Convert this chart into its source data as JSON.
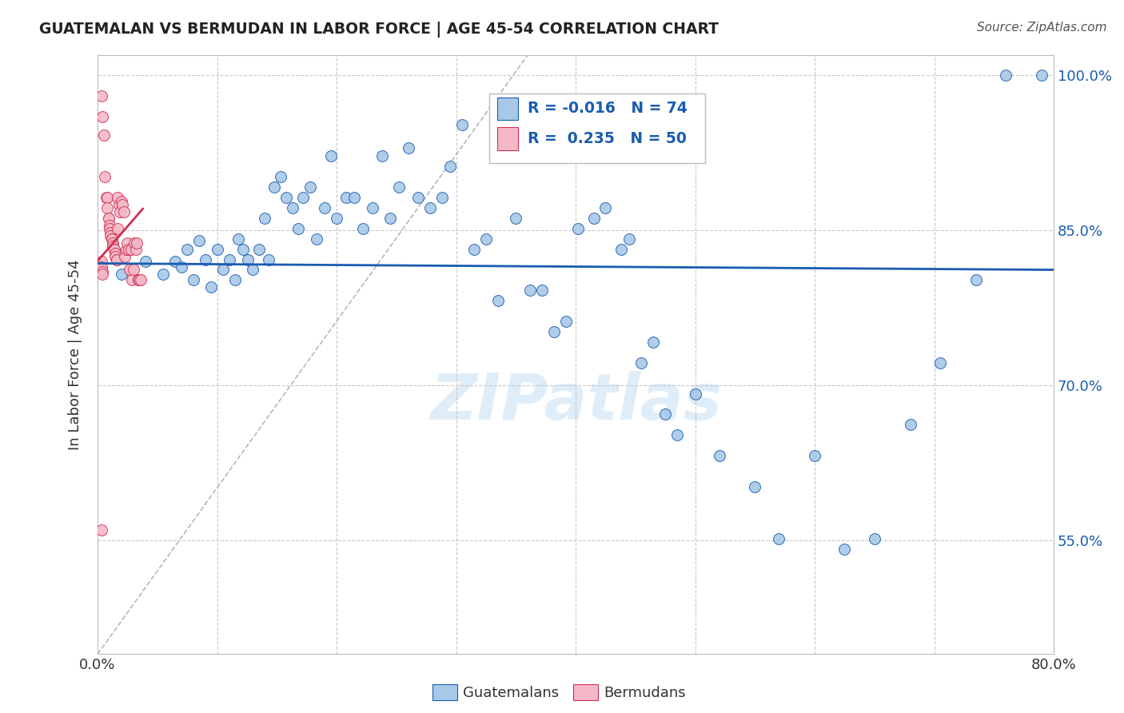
{
  "title": "GUATEMALAN VS BERMUDAN IN LABOR FORCE | AGE 45-54 CORRELATION CHART",
  "source": "Source: ZipAtlas.com",
  "ylabel": "In Labor Force | Age 45-54",
  "xlim": [
    0.0,
    0.8
  ],
  "ylim": [
    0.44,
    1.02
  ],
  "yticks": [
    0.55,
    0.7,
    0.85,
    1.0
  ],
  "ytick_labels": [
    "55.0%",
    "70.0%",
    "85.0%",
    "100.0%"
  ],
  "xticks": [
    0.0,
    0.1,
    0.2,
    0.3,
    0.4,
    0.5,
    0.6,
    0.7,
    0.8
  ],
  "blue_color": "#a8c8e8",
  "pink_color": "#f4b8c8",
  "blue_line_color": "#1a5cb0",
  "pink_line_color": "#d03050",
  "R_blue": -0.016,
  "N_blue": 74,
  "R_pink": 0.235,
  "N_pink": 50,
  "legend_label_blue": "Guatemalans",
  "legend_label_pink": "Bermudans",
  "blue_scatter_x": [
    0.02,
    0.04,
    0.055,
    0.065,
    0.07,
    0.075,
    0.08,
    0.085,
    0.09,
    0.095,
    0.1,
    0.105,
    0.11,
    0.115,
    0.118,
    0.122,
    0.126,
    0.13,
    0.135,
    0.14,
    0.143,
    0.148,
    0.153,
    0.158,
    0.163,
    0.168,
    0.172,
    0.178,
    0.183,
    0.19,
    0.195,
    0.2,
    0.208,
    0.215,
    0.222,
    0.23,
    0.238,
    0.245,
    0.252,
    0.26,
    0.268,
    0.278,
    0.288,
    0.295,
    0.305,
    0.315,
    0.325,
    0.335,
    0.35,
    0.362,
    0.372,
    0.382,
    0.392,
    0.402,
    0.415,
    0.425,
    0.438,
    0.445,
    0.455,
    0.465,
    0.475,
    0.485,
    0.5,
    0.52,
    0.55,
    0.57,
    0.6,
    0.625,
    0.65,
    0.68,
    0.705,
    0.735,
    0.76,
    0.79
  ],
  "blue_scatter_y": [
    0.808,
    0.82,
    0.808,
    0.82,
    0.815,
    0.832,
    0.802,
    0.84,
    0.822,
    0.795,
    0.832,
    0.812,
    0.822,
    0.802,
    0.842,
    0.832,
    0.822,
    0.812,
    0.832,
    0.862,
    0.822,
    0.892,
    0.902,
    0.882,
    0.872,
    0.852,
    0.882,
    0.892,
    0.842,
    0.872,
    0.922,
    0.862,
    0.882,
    0.882,
    0.852,
    0.872,
    0.922,
    0.862,
    0.892,
    0.93,
    0.882,
    0.872,
    0.882,
    0.912,
    0.952,
    0.832,
    0.842,
    0.782,
    0.862,
    0.792,
    0.792,
    0.752,
    0.762,
    0.852,
    0.862,
    0.872,
    0.832,
    0.842,
    0.722,
    0.742,
    0.672,
    0.652,
    0.692,
    0.632,
    0.602,
    0.552,
    0.632,
    0.542,
    0.552,
    0.662,
    0.722,
    0.802,
    1.0,
    1.0
  ],
  "pink_scatter_x": [
    0.003,
    0.004,
    0.005,
    0.006,
    0.007,
    0.008,
    0.008,
    0.009,
    0.009,
    0.01,
    0.01,
    0.011,
    0.011,
    0.012,
    0.012,
    0.012,
    0.013,
    0.013,
    0.014,
    0.014,
    0.015,
    0.015,
    0.016,
    0.016,
    0.017,
    0.017,
    0.018,
    0.019,
    0.02,
    0.021,
    0.022,
    0.023,
    0.024,
    0.025,
    0.026,
    0.027,
    0.028,
    0.029,
    0.03,
    0.031,
    0.032,
    0.033,
    0.034,
    0.035,
    0.036,
    0.003,
    0.003,
    0.004,
    0.004,
    0.003
  ],
  "pink_scatter_y": [
    0.98,
    0.96,
    0.942,
    0.902,
    0.882,
    0.882,
    0.872,
    0.862,
    0.862,
    0.855,
    0.852,
    0.848,
    0.845,
    0.842,
    0.842,
    0.842,
    0.838,
    0.835,
    0.832,
    0.832,
    0.828,
    0.825,
    0.822,
    0.822,
    0.852,
    0.882,
    0.875,
    0.868,
    0.878,
    0.875,
    0.868,
    0.825,
    0.832,
    0.838,
    0.832,
    0.812,
    0.832,
    0.802,
    0.812,
    0.838,
    0.832,
    0.838,
    0.802,
    0.802,
    0.802,
    0.82,
    0.815,
    0.81,
    0.808,
    0.56
  ],
  "diag_line": [
    [
      0.0,
      0.36
    ],
    [
      0.44,
      1.02
    ]
  ],
  "watermark": "ZIPatlas",
  "background_color": "#ffffff",
  "grid_color": "#c8c8c8"
}
